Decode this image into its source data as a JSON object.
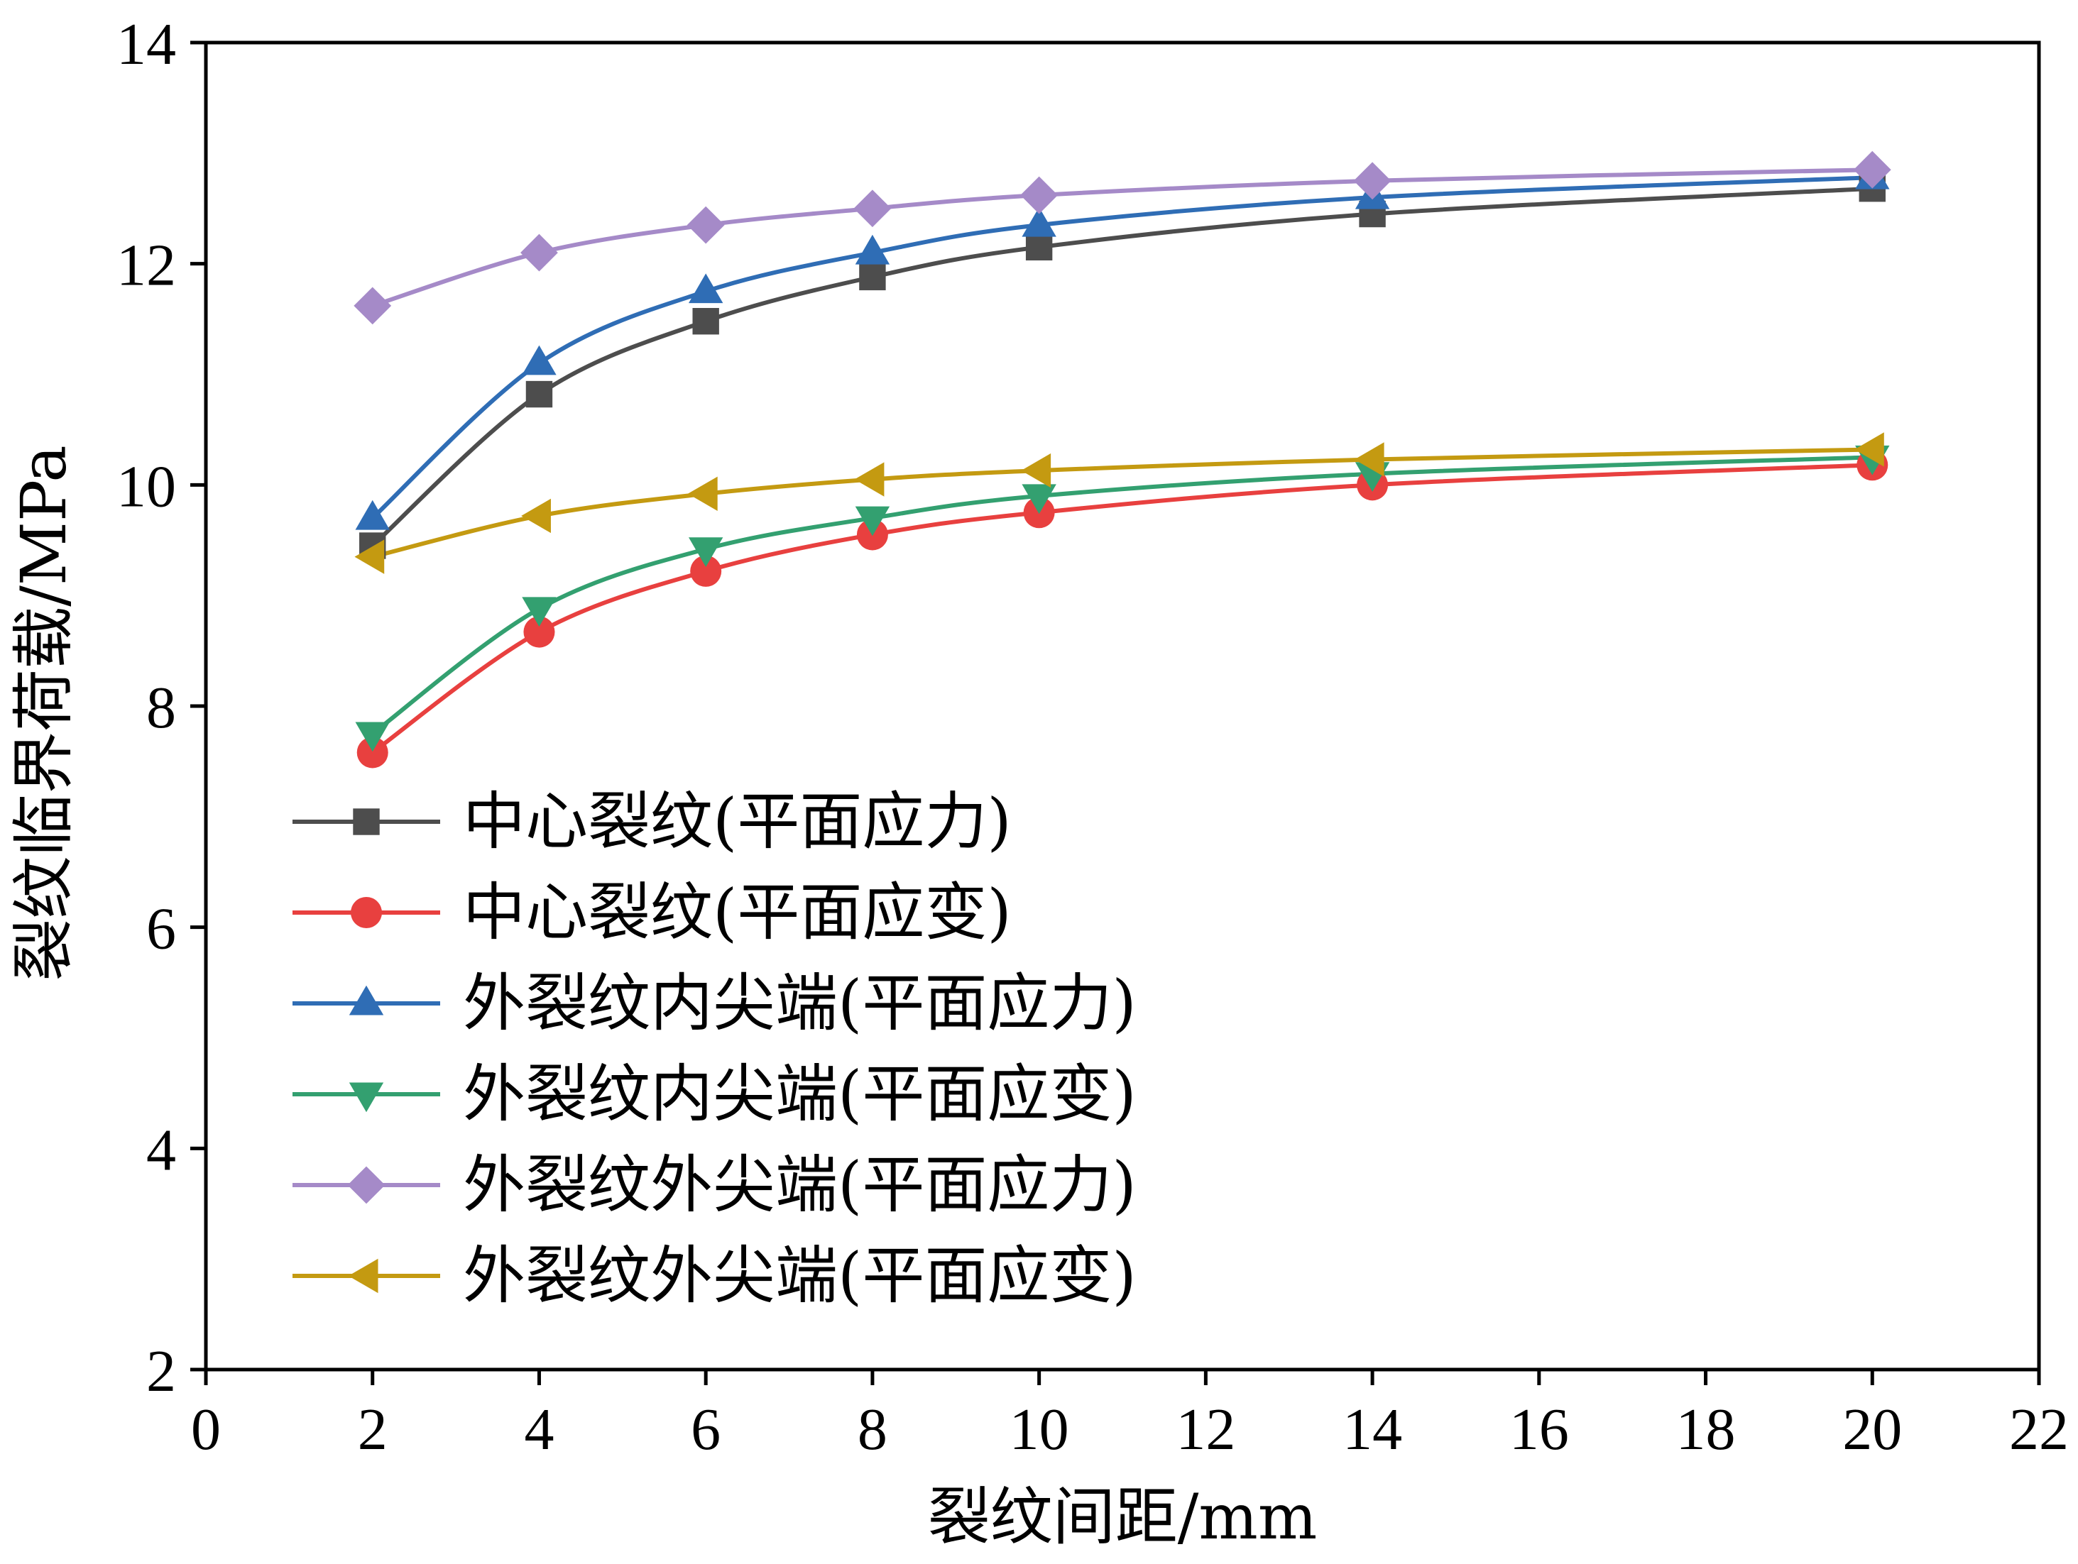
{
  "chart_data": {
    "type": "line",
    "title": "",
    "xlabel": "裂纹间距/mm",
    "ylabel": "裂纹临界荷载/MPa",
    "xlim": [
      0,
      22
    ],
    "ylim": [
      2,
      14
    ],
    "xticks": [
      0,
      2,
      4,
      6,
      8,
      10,
      12,
      14,
      16,
      18,
      20,
      22
    ],
    "yticks": [
      2,
      4,
      6,
      8,
      10,
      12,
      14
    ],
    "grid": false,
    "legend_position": "bottom-left",
    "x": [
      2,
      4,
      6,
      8,
      10,
      14,
      20
    ],
    "series": [
      {
        "name": "中心裂纹(平面应力)",
        "marker": "square",
        "color": "#4d4d4d",
        "values": [
          9.45,
          10.82,
          11.48,
          11.88,
          12.15,
          12.45,
          12.68
        ]
      },
      {
        "name": "中心裂纹(平面应变)",
        "marker": "circle",
        "color": "#e8403f",
        "values": [
          7.58,
          8.67,
          9.22,
          9.55,
          9.75,
          10.0,
          10.18
        ]
      },
      {
        "name": "外裂纹内尖端(平面应力)",
        "marker": "triangle-up",
        "color": "#2f6db5",
        "values": [
          9.7,
          11.1,
          11.75,
          12.1,
          12.35,
          12.6,
          12.78
        ]
      },
      {
        "name": "外裂纹内尖端(平面应变)",
        "marker": "triangle-down",
        "color": "#33a070",
        "values": [
          7.75,
          8.88,
          9.42,
          9.7,
          9.9,
          10.1,
          10.25
        ]
      },
      {
        "name": "外裂纹外尖端(平面应力)",
        "marker": "diamond",
        "color": "#a58ac8",
        "values": [
          11.62,
          12.1,
          12.35,
          12.5,
          12.62,
          12.75,
          12.85
        ]
      },
      {
        "name": "外裂纹外尖端(平面应变)",
        "marker": "triangle-left",
        "color": "#c49a11",
        "values": [
          9.35,
          9.72,
          9.92,
          10.05,
          10.13,
          10.23,
          10.32
        ]
      }
    ]
  }
}
